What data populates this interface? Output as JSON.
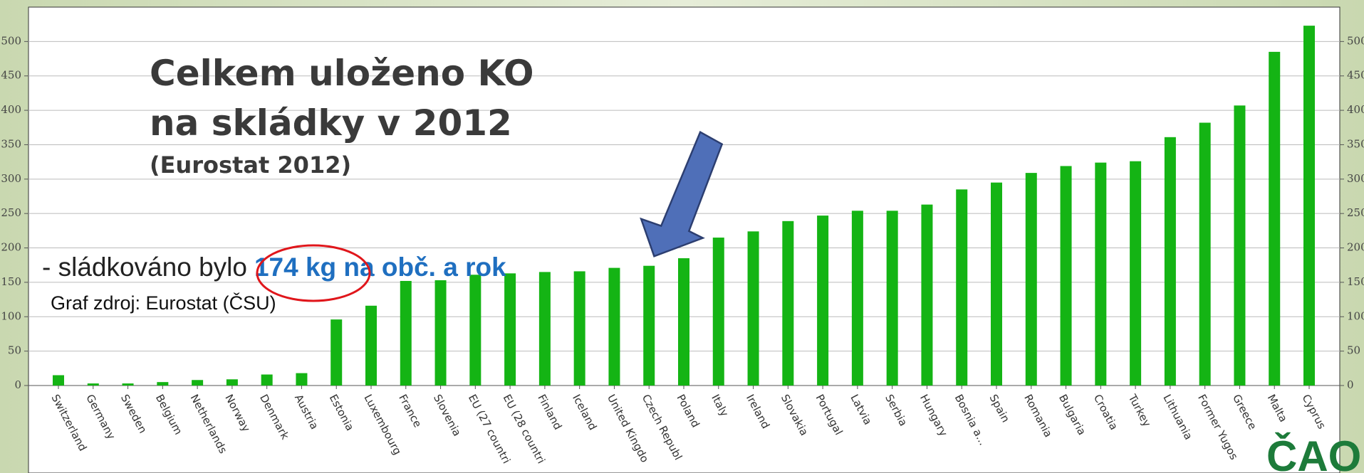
{
  "chart_data": {
    "type": "bar",
    "title_lines": [
      "Celkem uloženo KO",
      "na skládky v 2012"
    ],
    "subtitle": "(Eurostat 2012)",
    "annotation_prefix": "- sládkováno bylo",
    "annotation_highlight": "174 kg na obč. a rok",
    "source": "Graf zdroj: Eurostat (ČSU)",
    "logo": "ČAOH",
    "categories": [
      "Switzerland",
      "Germany",
      "Sweden",
      "Belgium",
      "Netherlands",
      "Norway",
      "Denmark",
      "Austria",
      "Estonia",
      "Luxembourg",
      "France",
      "Slovenia",
      "EU (27 countri",
      "EU (28 countri",
      "Finland",
      "Iceland",
      "United Kingdo",
      "Czech Republ",
      "Poland",
      "Italy",
      "Ireland",
      "Slovakia",
      "Portugal",
      "Latvia",
      "Serbia",
      "Hungary",
      "Bosnia a...",
      "Spain",
      "Romania",
      "Bulgaria",
      "Croatia",
      "Turkey",
      "Lithuania",
      "Former Yugos",
      "Greece",
      "Malta",
      "Cyprus"
    ],
    "values": [
      15,
      3,
      3,
      5,
      8,
      9,
      16,
      18,
      96,
      116,
      152,
      153,
      161,
      163,
      165,
      166,
      171,
      174,
      185,
      215,
      224,
      239,
      247,
      254,
      254,
      263,
      285,
      295,
      309,
      319,
      324,
      326,
      361,
      382,
      407,
      485,
      523
    ],
    "color": "#14b414",
    "ylim": [
      0,
      550
    ],
    "yticks": [
      0,
      50,
      100,
      150,
      200,
      250,
      300,
      350,
      400,
      450,
      500
    ],
    "grid": true
  }
}
